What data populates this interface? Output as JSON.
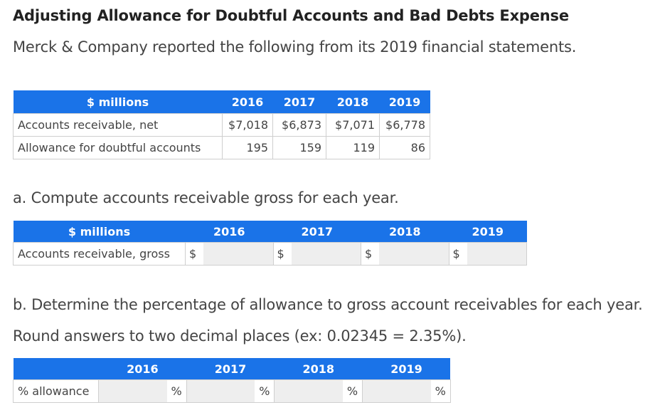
{
  "title": "Adjusting Allowance for Doubtful Accounts and Bad Debts Expense",
  "intro": "Merck & Company reported the following from its 2019 financial statements.",
  "table1": {
    "header_label": "$ millions",
    "years": [
      "2016",
      "2017",
      "2018",
      "2019"
    ],
    "rows": [
      {
        "label": "Accounts receivable, net",
        "values": [
          "$7,018",
          "$6,873",
          "$7,071",
          "$6,778"
        ]
      },
      {
        "label": "Allowance for doubtful accounts",
        "values": [
          "195",
          "159",
          "119",
          "86"
        ]
      }
    ]
  },
  "question_a": "a. Compute accounts receivable gross for each year.",
  "table2": {
    "header_label": "$ millions",
    "years": [
      "2016",
      "2017",
      "2018",
      "2019"
    ],
    "row_label": "Accounts receivable, gross",
    "currency_symbol": "$",
    "inputs": [
      "",
      "",
      "",
      ""
    ]
  },
  "question_b_line1": "b. Determine the percentage of allowance to gross account receivables for each year.",
  "question_b_line2": "Round answers to two decimal places (ex: 0.02345 = 2.35%).",
  "table3": {
    "years": [
      "2016",
      "2017",
      "2018",
      "2019"
    ],
    "row_label": "% allowance",
    "percent_symbol": "%",
    "inputs": [
      "",
      "",
      "",
      ""
    ]
  },
  "colors": {
    "header_bg": "#1a73e8",
    "header_text": "#ffffff",
    "input_bg": "#eeeeee"
  }
}
